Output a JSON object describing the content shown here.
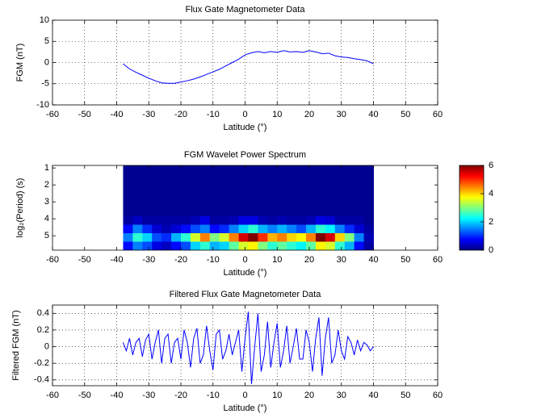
{
  "chart_data": [
    {
      "type": "line",
      "title": "Flux Gate Magnetometer Data",
      "xlabel": "Latitude (°)",
      "ylabel": "FGM (nT)",
      "x": [
        -38,
        -36,
        -34,
        -32,
        -30,
        -28,
        -26,
        -24,
        -22,
        -20,
        -18,
        -16,
        -14,
        -12,
        -10,
        -8,
        -6,
        -4,
        -2,
        0,
        2,
        4,
        6,
        8,
        10,
        12,
        14,
        16,
        18,
        20,
        22,
        24,
        26,
        28,
        30,
        32,
        34,
        36,
        38,
        40
      ],
      "values": [
        -0.3,
        -1.5,
        -2.3,
        -3.0,
        -3.7,
        -4.3,
        -4.8,
        -4.9,
        -4.9,
        -4.6,
        -4.3,
        -3.9,
        -3.4,
        -2.8,
        -2.2,
        -1.6,
        -0.8,
        0.0,
        0.8,
        1.8,
        2.3,
        2.6,
        2.3,
        2.6,
        2.4,
        2.8,
        2.5,
        2.6,
        2.4,
        2.8,
        2.5,
        2.1,
        2.2,
        1.6,
        1.3,
        1.2,
        0.9,
        0.7,
        0.4,
        -0.3
      ],
      "color": "#0000ff",
      "xlim": [
        -60,
        60
      ],
      "xticks": [
        -60,
        -50,
        -40,
        -30,
        -20,
        -10,
        0,
        10,
        20,
        30,
        40,
        50,
        60
      ],
      "ylim": [
        -10,
        10
      ],
      "yticks": [
        -10,
        -5,
        0,
        5,
        10
      ],
      "grid": true
    },
    {
      "type": "heatmap",
      "title": "FGM Wavelet Power Spectrum",
      "xlabel": "Latitude (°)",
      "ylabel": "log₂(Period) (s)",
      "x": [
        -36.5,
        -33.5,
        -30.5,
        -27.5,
        -24.5,
        -21.5,
        -18.5,
        -15.5,
        -12.5,
        -9.5,
        -6.5,
        -3.5,
        -0.5,
        2.5,
        5.5,
        8.5,
        11.5,
        14.5,
        17.5,
        20.5,
        23.5,
        26.5,
        29.5,
        32.5,
        35.5,
        38.5
      ],
      "y": [
        1.1,
        1.6,
        2.1,
        2.6,
        3.1,
        3.6,
        4.1,
        4.6,
        5.1,
        5.6
      ],
      "z": [
        [
          0.1,
          0.1,
          0.1,
          0.1,
          0.1,
          0.1,
          0.1,
          0.1,
          0.1,
          0.1,
          0.1,
          0.1,
          0.1,
          0.1,
          0.1,
          0.1,
          0.1,
          0.1,
          0.1,
          0.1,
          0.1,
          0.1,
          0.1,
          0.1,
          0.1,
          0.1
        ],
        [
          0.1,
          0.1,
          0.1,
          0.1,
          0.1,
          0.1,
          0.1,
          0.1,
          0.1,
          0.1,
          0.1,
          0.1,
          0.1,
          0.1,
          0.1,
          0.1,
          0.1,
          0.1,
          0.1,
          0.1,
          0.1,
          0.1,
          0.1,
          0.1,
          0.1,
          0.1
        ],
        [
          0.1,
          0.1,
          0.1,
          0.1,
          0.1,
          0.1,
          0.1,
          0.1,
          0.1,
          0.1,
          0.1,
          0.1,
          0.1,
          0.1,
          0.1,
          0.1,
          0.1,
          0.1,
          0.1,
          0.1,
          0.1,
          0.1,
          0.1,
          0.1,
          0.1,
          0.1
        ],
        [
          0.1,
          0.1,
          0.1,
          0.1,
          0.1,
          0.1,
          0.1,
          0.1,
          0.1,
          0.1,
          0.1,
          0.1,
          0.1,
          0.1,
          0.1,
          0.1,
          0.1,
          0.1,
          0.1,
          0.1,
          0.1,
          0.1,
          0.1,
          0.1,
          0.1,
          0.1
        ],
        [
          0.1,
          0.1,
          0.1,
          0.1,
          0.1,
          0.1,
          0.1,
          0.1,
          0.1,
          0.1,
          0.1,
          0.1,
          0.1,
          0.1,
          0.1,
          0.1,
          0.1,
          0.1,
          0.1,
          0.1,
          0.1,
          0.1,
          0.1,
          0.1,
          0.1,
          0.1
        ],
        [
          0.1,
          0.1,
          0.1,
          0.1,
          0.1,
          0.1,
          0.1,
          0.1,
          0.1,
          0.1,
          0.1,
          0.1,
          0.1,
          0.1,
          0.1,
          0.1,
          0.1,
          0.1,
          0.1,
          0.1,
          0.1,
          0.1,
          0.1,
          0.1,
          0.1,
          0.1
        ],
        [
          0.2,
          0.4,
          0.2,
          0.2,
          0.2,
          0.2,
          0.2,
          0.3,
          0.6,
          0.2,
          0.2,
          0.3,
          0.6,
          0.6,
          0.3,
          0.2,
          0.3,
          0.2,
          0.2,
          0.3,
          0.6,
          0.5,
          0.2,
          0.2,
          0.2,
          0.1
        ],
        [
          0.8,
          1.5,
          1.0,
          0.5,
          0.3,
          0.5,
          0.8,
          1.2,
          1.5,
          0.8,
          1.0,
          1.5,
          2.0,
          2.5,
          1.8,
          1.5,
          1.8,
          1.5,
          1.2,
          1.8,
          2.5,
          2.2,
          1.5,
          1.0,
          0.5,
          0.2
        ],
        [
          1.5,
          2.5,
          2.0,
          1.2,
          1.0,
          1.8,
          2.5,
          3.5,
          4.5,
          3.0,
          3.5,
          4.5,
          5.5,
          6.0,
          5.0,
          4.2,
          4.5,
          4.0,
          3.8,
          4.5,
          6.0,
          5.5,
          4.0,
          3.0,
          1.5,
          0.3
        ],
        [
          0.8,
          1.5,
          1.2,
          0.6,
          0.4,
          0.8,
          1.2,
          2.0,
          2.5,
          1.8,
          2.0,
          2.8,
          3.5,
          3.8,
          3.0,
          2.5,
          2.8,
          2.5,
          2.2,
          2.8,
          3.8,
          3.5,
          2.5,
          1.8,
          0.8,
          0.2
        ]
      ],
      "xlim": [
        -60,
        60
      ],
      "xticks": [
        -60,
        -50,
        -40,
        -30,
        -20,
        -10,
        0,
        10,
        20,
        30,
        40,
        50,
        60
      ],
      "ylim": [
        0.85,
        5.85
      ],
      "yticks": [
        1,
        2,
        3,
        4,
        5
      ],
      "yreverse": true,
      "grid": false,
      "colormap": "jet",
      "clim": [
        0,
        6
      ],
      "colorbar_ticks": [
        0,
        2,
        4,
        6
      ]
    },
    {
      "type": "line",
      "title": "Filtered Flux Gate Magnetometer Data",
      "xlabel": "Latitude (°)",
      "ylabel": "Filtered FGM (nT)",
      "x": [
        -38,
        -37,
        -36,
        -35,
        -34,
        -33,
        -32,
        -31,
        -30,
        -29,
        -28,
        -27,
        -26,
        -25,
        -24,
        -23,
        -22,
        -21,
        -20,
        -19,
        -18,
        -17,
        -16,
        -15,
        -14,
        -13,
        -12,
        -11,
        -10,
        -9,
        -8,
        -7,
        -6,
        -5,
        -4,
        -3,
        -2,
        -1,
        0,
        1,
        2,
        3,
        4,
        5,
        6,
        7,
        8,
        9,
        10,
        11,
        12,
        13,
        14,
        15,
        16,
        17,
        18,
        19,
        20,
        21,
        22,
        23,
        24,
        25,
        26,
        27,
        28,
        29,
        30,
        31,
        32,
        33,
        34,
        35,
        36,
        37,
        38,
        39,
        40
      ],
      "values": [
        0.05,
        -0.05,
        0.1,
        -0.1,
        0.05,
        0.1,
        -0.12,
        0.08,
        0.15,
        -0.15,
        0.05,
        0.2,
        -0.2,
        0.1,
        0.15,
        -0.2,
        0.05,
        0.1,
        -0.15,
        0.2,
        0.05,
        -0.25,
        0.1,
        0.22,
        -0.2,
        -0.1,
        0.25,
        -0.05,
        -0.28,
        0.15,
        0.2,
        -0.15,
        -0.05,
        0.15,
        -0.1,
        0.05,
        0.2,
        -0.3,
        0.1,
        0.42,
        -0.45,
        0.0,
        0.4,
        -0.3,
        -0.1,
        0.3,
        -0.25,
        0.05,
        0.28,
        -0.25,
        -0.05,
        0.25,
        -0.2,
        0.0,
        0.22,
        -0.15,
        -0.15,
        0.2,
        0.05,
        -0.3,
        0.1,
        0.35,
        -0.35,
        0.1,
        0.35,
        -0.2,
        -0.1,
        0.2,
        -0.05,
        -0.15,
        0.12,
        0.05,
        -0.1,
        0.08,
        -0.05,
        0.05,
        0.02,
        -0.05,
        0.0
      ],
      "color": "#0000ff",
      "xlim": [
        -60,
        60
      ],
      "xticks": [
        -60,
        -50,
        -40,
        -30,
        -20,
        -10,
        0,
        10,
        20,
        30,
        40,
        50,
        60
      ],
      "ylim": [
        -0.47,
        0.5
      ],
      "yticks": [
        -0.4,
        -0.2,
        0,
        0.2,
        0.4
      ],
      "grid": true
    }
  ]
}
